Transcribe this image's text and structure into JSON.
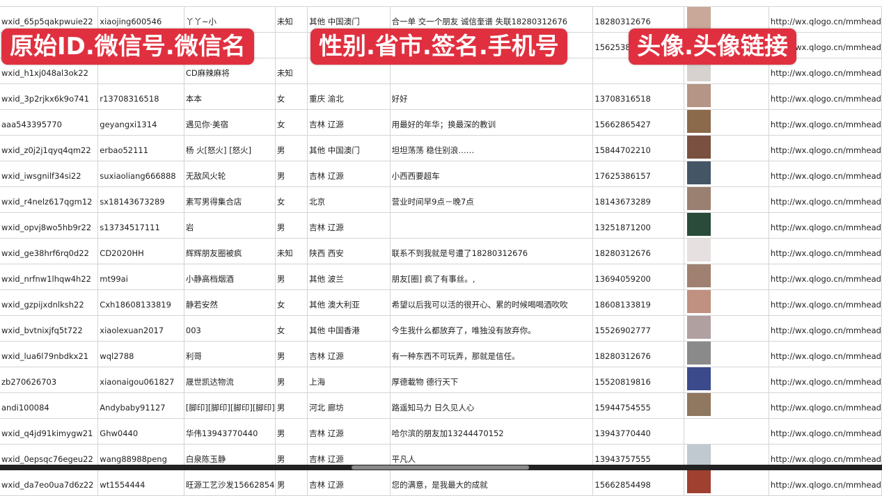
{
  "overlays": [
    "原始ID.微信号.微信名",
    "性别.省市.签名.手机号",
    "头像.头像链接"
  ],
  "avatar_colors": [
    "#c9a89a",
    "#6a7fa8",
    "#d7d2cf",
    "#b59585",
    "#8a6a4a",
    "#7a5040",
    "#445566",
    "#9a8070",
    "#2a4a3a",
    "#e6e0e0",
    "#a08070",
    "#c09080",
    "#b0a0a0",
    "#8a8a8a",
    "#3a4a8a",
    "#907860",
    "#ffffff",
    "#c0c8d0",
    "#a04030"
  ],
  "rows": [
    [
      "wxid_65p5qakpwuie22",
      "xiaojing600546",
      "丫丫~小",
      "未知",
      "其他 中国澳门",
      "合一单 交一个朋友 诚信奎谱 失联18280312676",
      "18280312676",
      "http://wx.qlogo.cn/mmhead"
    ],
    [
      "",
      "",
      "",
      "",
      "",
      "",
      "15625386",
      "http://wx.qlogo.cn/mmhead"
    ],
    [
      "wxid_h1xj048al3ok22",
      "",
      "CD麻辣麻将",
      "未知",
      "",
      "",
      "",
      "http://wx.qlogo.cn/mmhead"
    ],
    [
      "wxid_3p2rjkx6k9o741",
      "r13708316518",
      "本本",
      "女",
      "重庆 渝北",
      "好好",
      "13708316518",
      "http://wx.qlogo.cn/mmhead"
    ],
    [
      "aaa543395770",
      "geyangxi1314",
      "遇见你·美宿",
      "女",
      "吉林 辽源",
      "用最好的年华；换最深的教训",
      "15662865427",
      "http://wx.qlogo.cn/mmhead"
    ],
    [
      "wxid_z0j2j1qyq4qm22",
      "erbao52111",
      "杨 火[怒火] [怒火]",
      "男",
      "其他 中国澳门",
      "坦坦荡荡 稳住别浪……",
      "15844702210",
      "http://wx.qlogo.cn/mmhead"
    ],
    [
      "wxid_iwsgnilf34si22",
      "suxiaoliang666888",
      "无敌风火轮",
      "男",
      "吉林 辽源",
      "小西西要超车",
      "17625386157",
      "http://wx.qlogo.cn/mmhead"
    ],
    [
      "wxid_r4nelz617qgm12",
      "sx18143673289",
      "素写男得集合店",
      "女",
      "北京",
      "营业时间早9点－晚7点",
      "18143673289",
      "http://wx.qlogo.cn/mmhead"
    ],
    [
      "wxid_opvj8wo5hb9r22",
      "s13734517111",
      "岩",
      "男",
      "吉林 辽源",
      "",
      "13251871200",
      "http://wx.qlogo.cn/mmhead"
    ],
    [
      "wxid_ge38hrf6rq0d22",
      "CD2020HH",
      "辉辉朋友圈被疯",
      "未知",
      "陕西 西安",
      "联系不到我就是号遭了18280312676",
      "18280312676",
      "http://wx.qlogo.cn/mmhead"
    ],
    [
      "wxid_nrfnw1lhqw4h22",
      "mt99ai",
      "小静高档烟酒",
      "男",
      "其他 波兰",
      "朋友[圈] 疯了有事丝。,",
      "13694059200",
      "http://wx.qlogo.cn/mmhead"
    ],
    [
      "wxid_gzpijxdnlksh22",
      "Cxh18608133819",
      "静若安然",
      "女",
      "其他 澳大利亚",
      "希望以后我可以活的很开心、累的时候喝喝酒吹吹",
      "18608133819",
      "http://wx.qlogo.cn/mmhead"
    ],
    [
      "wxid_bvtnixjfq5t722",
      "xiaolexuan2017",
      "003",
      "女",
      "其他 中国香港",
      "今生我什么都放弃了，唯独没有放弃你。",
      "15526902777",
      "http://wx.qlogo.cn/mmhead"
    ],
    [
      "wxid_lua6l79nbdkx21",
      "wql2788",
      "利哥",
      "男",
      "吉林 辽源",
      "有一种东西不可玩弄，那就是信任。",
      "18280312676",
      "http://wx.qlogo.cn/mmhead"
    ],
    [
      "zb270626703",
      "xiaonaigou061827",
      "晟世凯达物流",
      "男",
      "上海",
      "厚德載物 德行天下",
      "15520819816",
      "http://wx.qlogo.cn/mmhead"
    ],
    [
      "andi100084",
      "Andybaby91127",
      "[脚印][脚印][脚印][脚印]",
      "男",
      "河北 廊坊",
      "路遥知马力 日久见人心",
      "15944754555",
      "http://wx.qlogo.cn/mmhead"
    ],
    [
      "wxid_q4jd91kimygw21",
      "Ghw0440",
      "华伟13943770440",
      "男",
      "吉林 辽源",
      "哈尔滨的朋友加13244470152",
      "13943770440",
      "http://wx.qlogo.cn/mmhead"
    ],
    [
      "wxid_0epsqc76egeu22",
      "wang88988peng",
      "白泉陈玉静",
      "男",
      "吉林 辽源",
      "平凡人",
      "13943757555",
      "http://wx.qlogo.cn/mmhead"
    ],
    [
      "wxid_da7eo0ua7d6z22",
      "wt1554444",
      "旺源工艺沙发15662854",
      "男",
      "吉林 辽源",
      "您的满意，是我最大的成就",
      "15662854498",
      "http://wx.qlogo.cn/mmhead"
    ]
  ]
}
